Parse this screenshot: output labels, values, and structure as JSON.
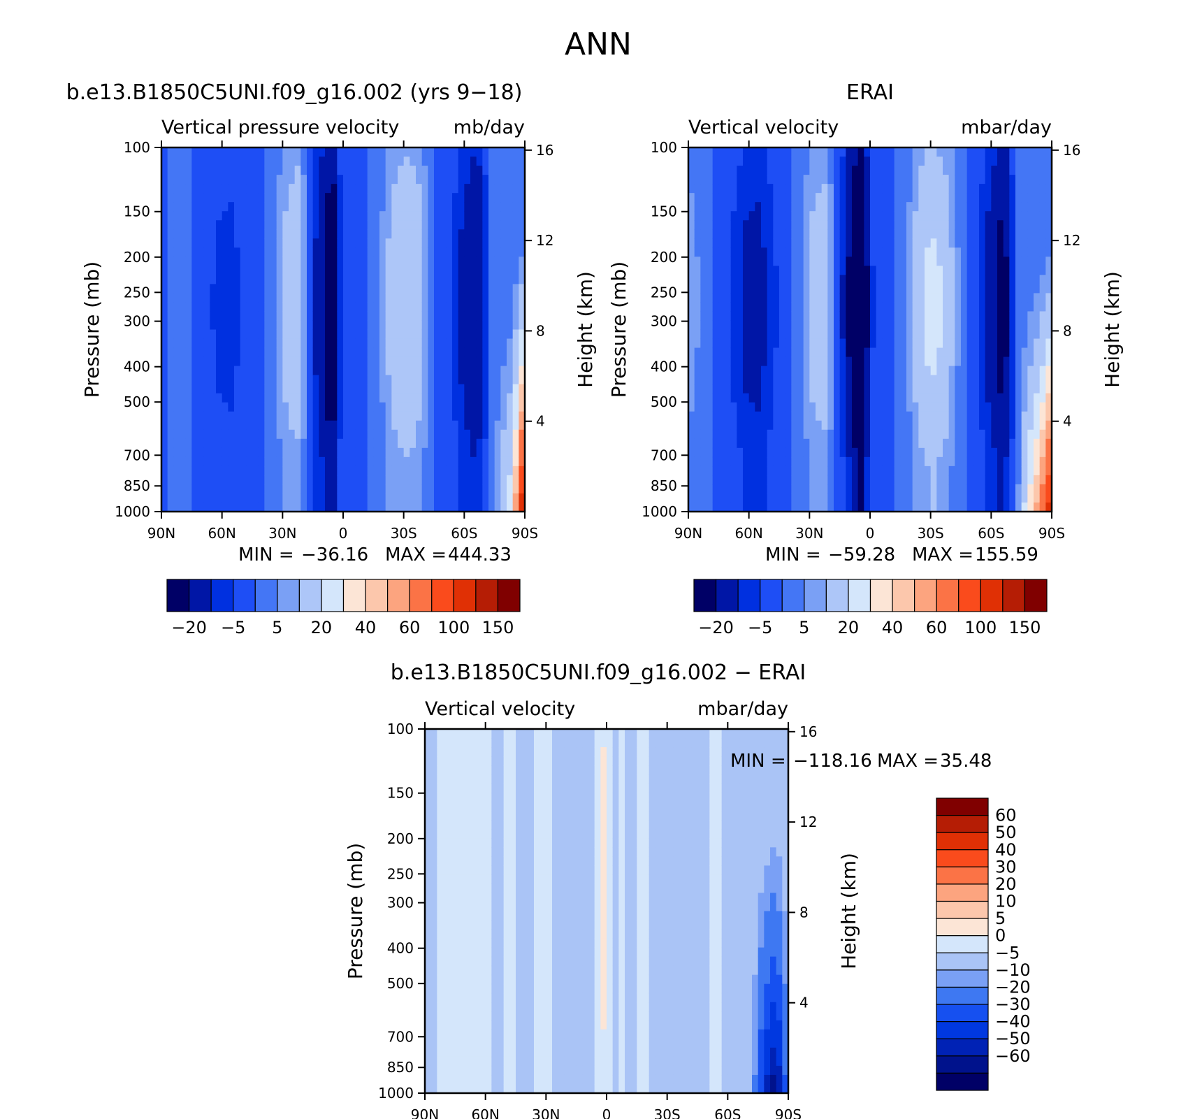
{
  "figure_title": "ANN",
  "colors": {
    "blue_to_red_16": [
      "#000066",
      "#0016a6",
      "#0030e0",
      "#1e4ef5",
      "#4476f5",
      "#7aa0f5",
      "#adc6f8",
      "#d4e6fb",
      "#fce5d6",
      "#fcc7ac",
      "#fca47f",
      "#fb7346",
      "#fa4b1c",
      "#e03005",
      "#b51d05",
      "#800000"
    ],
    "diff_16": [
      "#000066",
      "#00128c",
      "#0022b5",
      "#0038e0",
      "#1650f0",
      "#3e78f2",
      "#7aa0f5",
      "#aac4f6",
      "#d4e6fb",
      "#fce5d6",
      "#fcc7ac",
      "#fca47f",
      "#fb7346",
      "#fa4b1c",
      "#e03005",
      "#b51d05",
      "#800000"
    ],
    "ink": "#000000"
  },
  "chart_data": [
    {
      "type": "heatmap",
      "panel": "model",
      "title": "b.e13.B1850C5UNI.f09_g16.002 (yrs 9−18)",
      "variable": "Vertical pressure velocity",
      "units": "mb/day",
      "ylabel": "Pressure (mb)",
      "y2label": "Height (km)",
      "x_ticks": [
        "90N",
        "60N",
        "30N",
        "0",
        "30S",
        "60S",
        "90S"
      ],
      "y_ticks": [
        100,
        150,
        200,
        250,
        300,
        400,
        500,
        700,
        850,
        1000
      ],
      "y2_ticks": [
        4,
        8,
        12,
        16
      ],
      "ylim": [
        1000,
        100
      ],
      "xlim": [
        90,
        -90
      ],
      "stats": {
        "min_label": "MIN =",
        "min": "−36.16",
        "max_label": "MAX =",
        "max": "444.33"
      },
      "colorbar_labels": [
        "−20",
        "−5",
        "5",
        "20",
        "40",
        "60",
        "100",
        "150"
      ],
      "profile_lats": [
        90,
        80,
        70,
        62,
        55,
        48,
        40,
        33,
        28,
        22,
        16,
        12,
        8,
        5,
        2,
        0,
        -4,
        -8,
        -12,
        -18,
        -24,
        -30,
        -36,
        -42,
        -48,
        -54,
        -60,
        -66,
        -72,
        -78,
        -84,
        -90
      ],
      "profile_values": [
        -2,
        3,
        -3,
        -6,
        -7,
        -3,
        -2,
        6,
        14,
        18,
        -5,
        -15,
        -28,
        -34,
        -10,
        -3,
        -4,
        -2,
        -1,
        4,
        14,
        20,
        18,
        6,
        -2,
        -5,
        -14,
        -22,
        -4,
        15,
        30,
        140
      ],
      "max_value": 444.33
    },
    {
      "type": "heatmap",
      "panel": "obs",
      "title": "ERAI",
      "variable": "Vertical velocity",
      "units": "mbar/day",
      "ylabel": "Pressure (mb)",
      "y2label": "Height (km)",
      "x_ticks": [
        "90N",
        "60N",
        "30N",
        "0",
        "30S",
        "60S",
        "90S"
      ],
      "y_ticks": [
        100,
        150,
        200,
        250,
        300,
        400,
        500,
        700,
        850,
        1000
      ],
      "y2_ticks": [
        4,
        8,
        12,
        16
      ],
      "ylim": [
        1000,
        100
      ],
      "xlim": [
        90,
        -90
      ],
      "stats": {
        "min_label": "MIN =",
        "min": "−59.28",
        "max_label": "MAX =",
        "max": "155.59"
      },
      "colorbar_labels": [
        "−20",
        "−5",
        "5",
        "20",
        "40",
        "60",
        "100",
        "150"
      ],
      "profile_lats": [
        90,
        80,
        70,
        62,
        55,
        48,
        40,
        33,
        28,
        22,
        16,
        12,
        8,
        5,
        2,
        0,
        -4,
        -8,
        -12,
        -18,
        -24,
        -30,
        -36,
        -42,
        -48,
        -54,
        -60,
        -66,
        -72,
        -78,
        -84,
        -90
      ],
      "profile_values": [
        8,
        2,
        -4,
        -12,
        -14,
        -6,
        -2,
        6,
        14,
        16,
        -4,
        -14,
        -34,
        -50,
        -26,
        -6,
        -4,
        -2,
        -1,
        4,
        16,
        24,
        20,
        8,
        -2,
        -5,
        -16,
        -28,
        -2,
        30,
        60,
        120
      ],
      "max_value": 155.59
    },
    {
      "type": "heatmap",
      "panel": "difference",
      "title": "b.e13.B1850C5UNI.f09_g16.002 − ERAI",
      "variable": "Vertical velocity",
      "units": "mbar/day",
      "ylabel": "Pressure (mb)",
      "y2label": "Height (km)",
      "x_ticks": [
        "90N",
        "60N",
        "30N",
        "0",
        "30S",
        "60S",
        "90S"
      ],
      "y_ticks": [
        100,
        150,
        200,
        250,
        300,
        400,
        500,
        700,
        850,
        1000
      ],
      "y2_ticks": [
        4,
        8,
        12,
        16
      ],
      "ylim": [
        1000,
        100
      ],
      "xlim": [
        90,
        -90
      ],
      "stats": {
        "min_label": "MIN =",
        "min": "−118.16",
        "max_label": "MAX =",
        "max": "35.48"
      },
      "colorbar_labels": [
        "60",
        "50",
        "40",
        "30",
        "20",
        "10",
        "5",
        "0",
        "−5",
        "−10",
        "−20",
        "−30",
        "−40",
        "−50",
        "−60"
      ],
      "profile_lats": [
        90,
        80,
        70,
        62,
        55,
        48,
        40,
        33,
        28,
        22,
        16,
        12,
        8,
        5,
        2,
        0,
        -4,
        -8,
        -12,
        -18,
        -24,
        -30,
        -36,
        -42,
        -48,
        -54,
        -60,
        -66,
        -72,
        -78,
        -84,
        -90
      ],
      "profile_values": [
        -2,
        2,
        1,
        2,
        -1,
        1,
        -2,
        1,
        1,
        -2,
        -3,
        -3,
        -3,
        3,
        10,
        8,
        -1,
        1,
        -1,
        1,
        -2,
        -3,
        -2,
        -3,
        -2,
        2,
        -1,
        -2,
        -2,
        -40,
        -60,
        -10
      ],
      "min_value": -118.16
    }
  ]
}
